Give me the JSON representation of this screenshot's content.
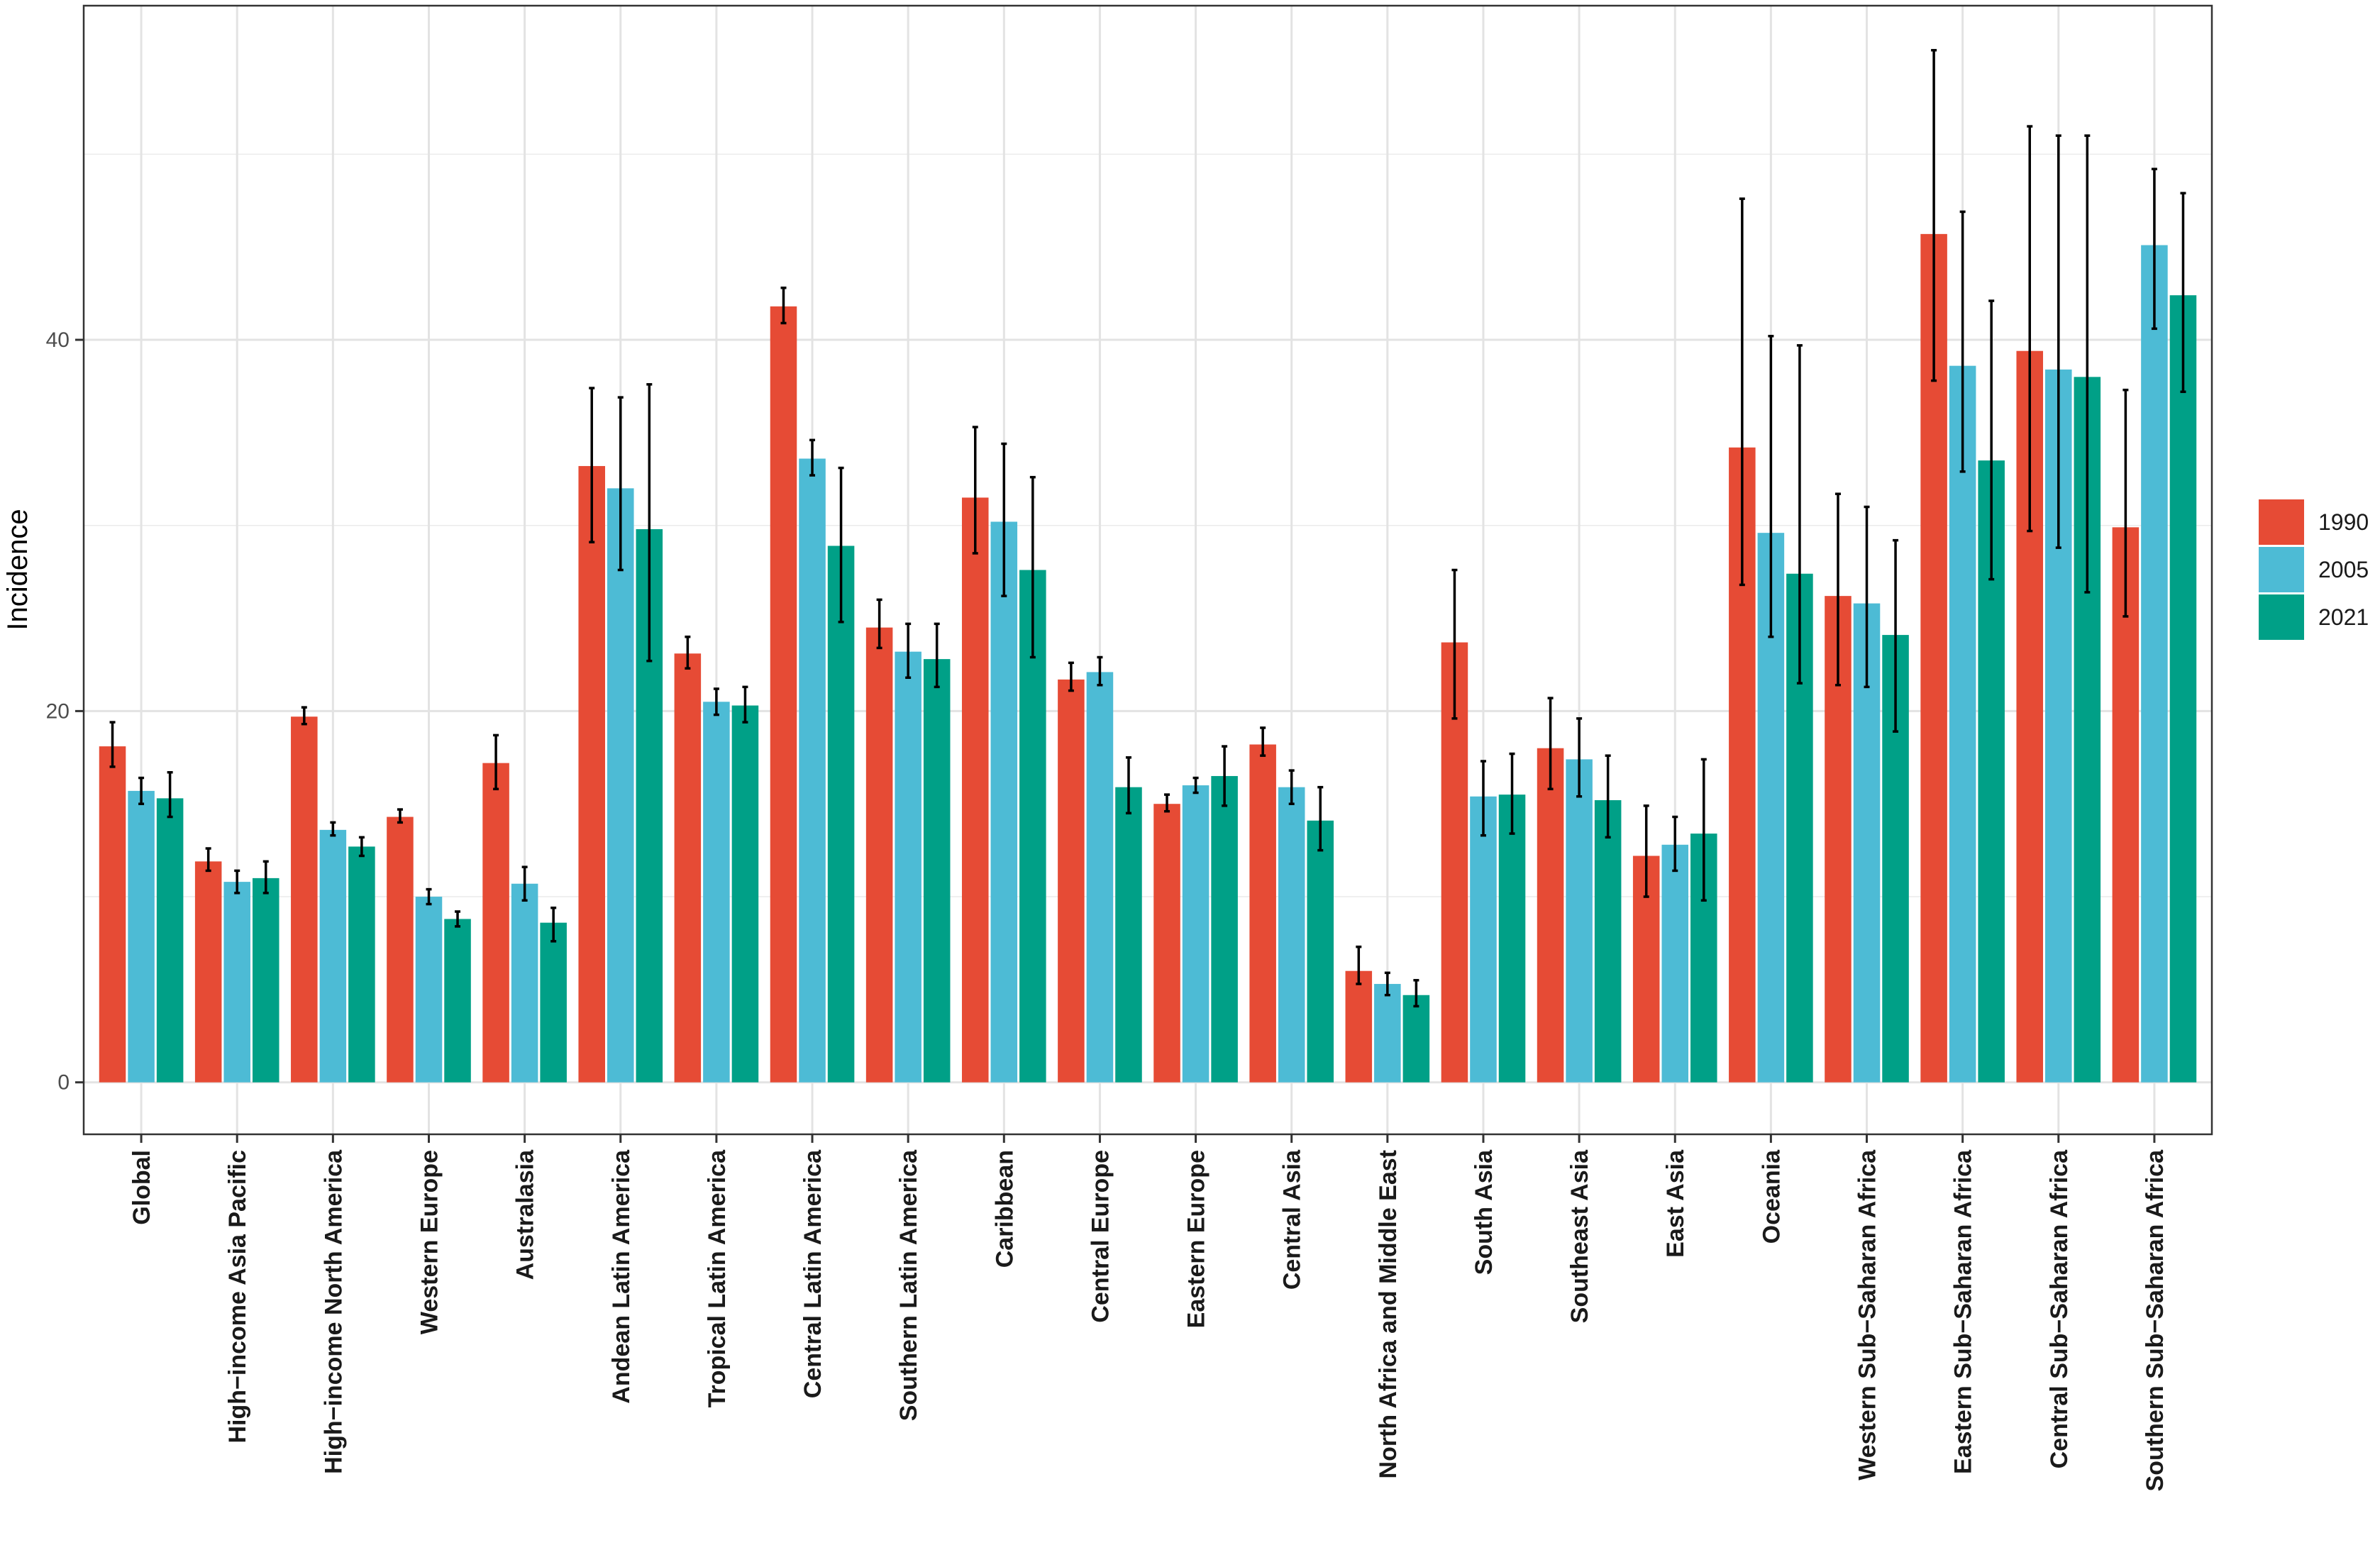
{
  "chart_data": {
    "type": "bar",
    "title": "",
    "xlabel": "",
    "ylabel": "Incidence",
    "ylim": [
      -2.8,
      58
    ],
    "yticks": [
      0,
      20,
      40
    ],
    "grid": true,
    "legend_position": "right",
    "colors": {
      "1990": "#E64B35",
      "2005": "#4DBBD5",
      "2021": "#00A087"
    },
    "categories": [
      "Global",
      "High-income Asia Pacific",
      "High-income North America",
      "Western Europe",
      "Australasia",
      "Andean Latin America",
      "Tropical Latin America",
      "Central Latin America",
      "Southern Latin America",
      "Caribbean",
      "Central Europe",
      "Eastern Europe",
      "Central Asia",
      "North Africa and Middle East",
      "South Asia",
      "Southeast Asia",
      "East Asia",
      "Oceania",
      "Western Sub-Saharan Africa",
      "Eastern Sub-Saharan Africa",
      "Central Sub-Saharan Africa",
      "Southern Sub-Saharan Africa"
    ],
    "category_labels": [
      "Global",
      "High−income Asia Pacific",
      "High−income North America",
      "Western Europe",
      "Australasia",
      "Andean Latin America",
      "Tropical Latin America",
      "Central Latin America",
      "Southern Latin America",
      "Caribbean",
      "Central Europe",
      "Eastern Europe",
      "Central Asia",
      "North Africa and Middle East",
      "South Asia",
      "Southeast Asia",
      "East Asia",
      "Oceania",
      "Western Sub−Saharan Africa",
      "Eastern Sub−Saharan Africa",
      "Central Sub−Saharan Africa",
      "Southern Sub−Saharan Africa"
    ],
    "series": [
      {
        "name": "1990",
        "values": [
          18.1,
          11.9,
          19.7,
          14.3,
          17.2,
          33.2,
          23.1,
          41.8,
          24.5,
          31.5,
          21.7,
          15.0,
          18.2,
          6.0,
          23.7,
          18.0,
          12.2,
          34.2,
          26.2,
          45.7,
          39.4,
          29.9
        ],
        "lower": [
          17.0,
          11.4,
          19.3,
          14.0,
          15.8,
          29.1,
          22.3,
          40.9,
          23.4,
          28.5,
          21.1,
          14.6,
          17.6,
          5.3,
          19.6,
          15.8,
          10.0,
          26.8,
          21.4,
          37.8,
          29.7,
          25.1
        ],
        "upper": [
          19.4,
          12.6,
          20.2,
          14.7,
          18.7,
          37.4,
          24.0,
          42.8,
          26.0,
          35.3,
          22.6,
          15.5,
          19.1,
          7.3,
          27.6,
          20.7,
          14.9,
          47.6,
          31.7,
          55.6,
          51.5,
          37.3
        ]
      },
      {
        "name": "2005",
        "values": [
          15.7,
          10.8,
          13.6,
          10.0,
          10.7,
          32.0,
          20.5,
          33.6,
          23.2,
          30.2,
          22.1,
          16.0,
          15.9,
          5.3,
          15.4,
          17.4,
          12.8,
          29.6,
          25.8,
          38.6,
          38.4,
          45.1
        ],
        "lower": [
          15.0,
          10.2,
          13.3,
          9.6,
          9.8,
          27.6,
          19.8,
          32.7,
          21.8,
          26.2,
          21.4,
          15.6,
          15.0,
          4.7,
          13.3,
          15.4,
          11.4,
          24.0,
          21.3,
          32.9,
          28.8,
          40.6
        ],
        "upper": [
          16.4,
          11.4,
          14.0,
          10.4,
          11.6,
          36.9,
          21.2,
          34.6,
          24.7,
          34.4,
          22.9,
          16.4,
          16.8,
          5.9,
          17.3,
          19.6,
          14.3,
          40.2,
          31.0,
          46.9,
          51.0,
          49.2
        ]
      },
      {
        "name": "2021",
        "values": [
          15.3,
          11.0,
          12.7,
          8.8,
          8.6,
          29.8,
          20.3,
          28.9,
          22.8,
          27.6,
          15.9,
          16.5,
          14.1,
          4.7,
          15.5,
          15.2,
          13.4,
          27.4,
          24.1,
          33.5,
          38.0,
          42.4
        ],
        "lower": [
          14.3,
          10.2,
          12.2,
          8.4,
          7.6,
          22.7,
          19.4,
          24.8,
          21.3,
          22.9,
          14.5,
          14.9,
          12.5,
          4.1,
          13.4,
          13.2,
          9.8,
          21.5,
          18.9,
          27.1,
          26.4,
          37.2
        ],
        "upper": [
          16.7,
          11.9,
          13.2,
          9.2,
          9.4,
          37.6,
          21.3,
          33.1,
          24.7,
          32.6,
          17.5,
          18.1,
          15.9,
          5.5,
          17.7,
          17.6,
          17.4,
          39.7,
          29.2,
          42.1,
          51.0,
          47.9
        ]
      }
    ]
  }
}
